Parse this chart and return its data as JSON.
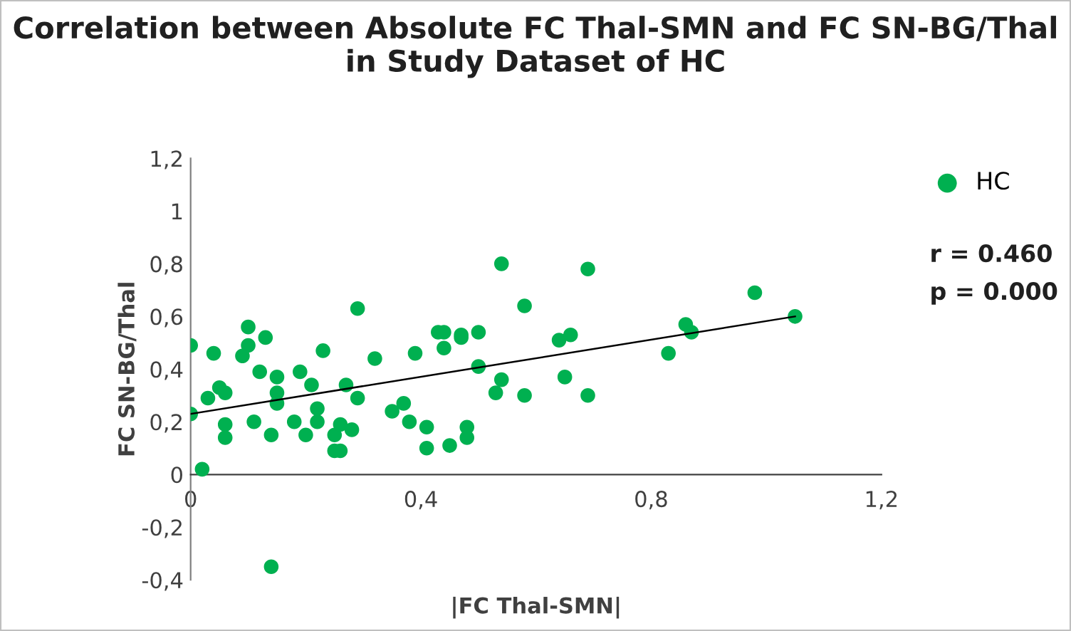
{
  "chart_data": {
    "type": "scatter",
    "title": "Correlation between Absolute FC Thal-SMN and FC SN-BG/Thal\nin Study Dataset of HC",
    "xlabel": "|FC Thal-SMN|",
    "ylabel": "FC SN-BG/Thal",
    "series": [
      {
        "name": "HC",
        "color": "#00b050",
        "marker": "circle",
        "x": [
          0.0,
          0.0,
          0.02,
          0.03,
          0.04,
          0.05,
          0.06,
          0.06,
          0.06,
          0.09,
          0.1,
          0.1,
          0.11,
          0.12,
          0.13,
          0.14,
          0.14,
          0.15,
          0.15,
          0.15,
          0.18,
          0.19,
          0.2,
          0.21,
          0.22,
          0.22,
          0.23,
          0.25,
          0.25,
          0.26,
          0.26,
          0.27,
          0.28,
          0.29,
          0.29,
          0.32,
          0.35,
          0.37,
          0.38,
          0.39,
          0.41,
          0.41,
          0.43,
          0.44,
          0.44,
          0.45,
          0.47,
          0.47,
          0.48,
          0.48,
          0.5,
          0.5,
          0.53,
          0.54,
          0.54,
          0.58,
          0.58,
          0.64,
          0.66,
          0.65,
          0.69,
          0.69,
          0.83,
          0.86,
          0.87,
          0.98,
          1.05
        ],
        "values": [
          0.49,
          0.23,
          0.02,
          0.29,
          0.46,
          0.33,
          0.31,
          0.19,
          0.14,
          0.45,
          0.49,
          0.56,
          0.2,
          0.39,
          0.52,
          0.15,
          -0.35,
          0.31,
          0.37,
          0.27,
          0.2,
          0.39,
          0.15,
          0.34,
          0.2,
          0.25,
          0.47,
          0.09,
          0.15,
          0.09,
          0.19,
          0.34,
          0.17,
          0.29,
          0.63,
          0.44,
          0.24,
          0.27,
          0.2,
          0.46,
          0.18,
          0.1,
          0.54,
          0.54,
          0.48,
          0.11,
          0.53,
          0.52,
          0.18,
          0.14,
          0.41,
          0.54,
          0.31,
          0.8,
          0.36,
          0.64,
          0.3,
          0.51,
          0.53,
          0.37,
          0.3,
          0.78,
          0.46,
          0.57,
          0.54,
          0.69,
          0.6
        ]
      },
      {
        "color": "#000000",
        "type": "line",
        "x": [
          0.0,
          1.05
        ],
        "values": [
          0.23,
          0.6
        ]
      }
    ],
    "xlim": [
      0,
      1.2
    ],
    "ylim": [
      -0.4,
      1.2
    ],
    "xticks": [
      0,
      {
        "value": 0.4,
        "label": "0,4"
      },
      {
        "value": 0.8,
        "label": "0,8"
      },
      {
        "value": 1.2,
        "label": "1,2"
      }
    ],
    "yticks": [
      {
        "value": -0.4,
        "label": "-0,4"
      },
      {
        "value": -0.2,
        "label": "-0,2"
      },
      0,
      {
        "value": 0.2,
        "label": "0,2"
      },
      {
        "value": 0.4,
        "label": "0,4"
      },
      {
        "value": 0.6,
        "label": "0,6"
      },
      {
        "value": 0.8,
        "label": "0,8"
      },
      1,
      {
        "value": 1.2,
        "label": "1,2"
      }
    ],
    "grid": false,
    "legend": "top right",
    "annotations": [
      "r = 0.460",
      "p = 0.000"
    ]
  }
}
